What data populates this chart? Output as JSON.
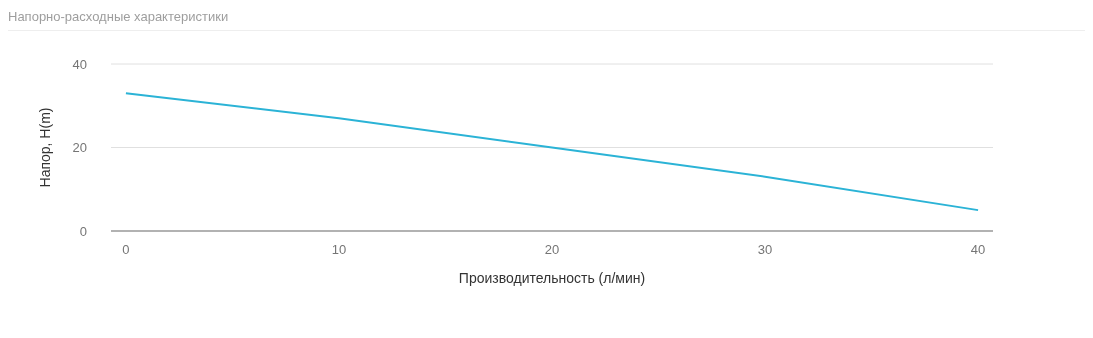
{
  "chart_data": {
    "type": "line",
    "title": "Напорно-расходные характеристики",
    "xlabel": "Производительность (л/мин)",
    "ylabel": "Напор, H(m)",
    "x": [
      0,
      10,
      20,
      30,
      40
    ],
    "series": [
      {
        "color": "#2bb3d6",
        "values": [
          33,
          27,
          20,
          13,
          5
        ]
      }
    ],
    "xlim": [
      -0.7,
      40.7
    ],
    "xticks": [
      0,
      10,
      20,
      30,
      40
    ],
    "ylim": [
      0,
      40
    ],
    "yticks": [
      0,
      20,
      40
    ],
    "grid": "y",
    "marker": "none",
    "line_style": "solid"
  }
}
